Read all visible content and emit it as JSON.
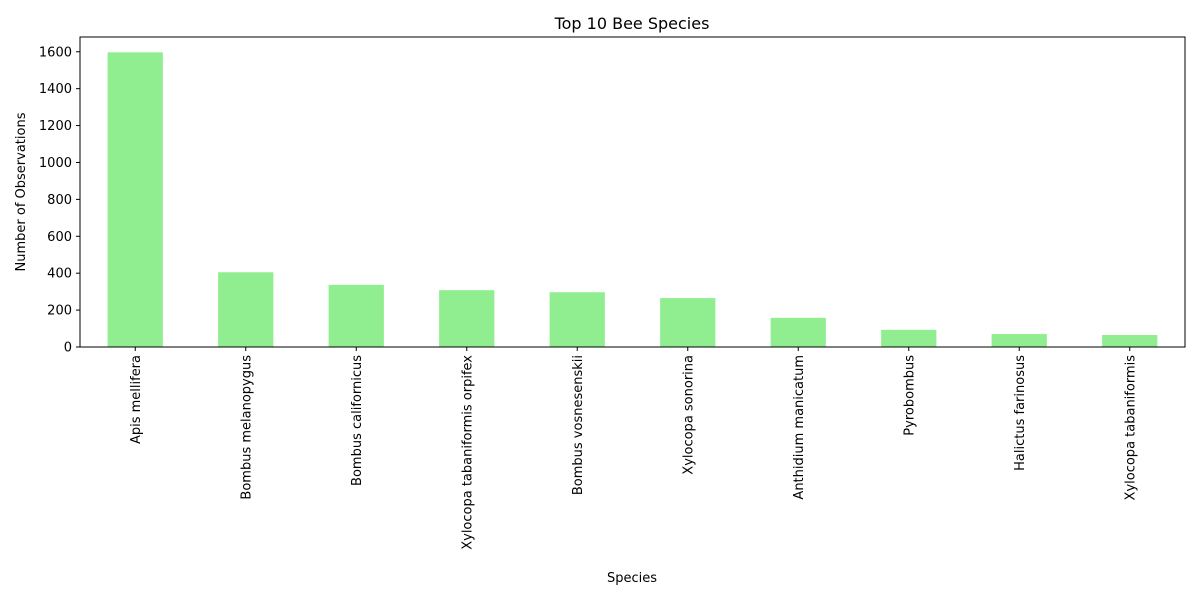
{
  "chart_data": {
    "type": "bar",
    "title": "Top 10 Bee Species",
    "xlabel": "Species",
    "ylabel": "Number of Observations",
    "categories": [
      "Apis mellifera",
      "Bombus melanopygus",
      "Bombus californicus",
      "Xylocopa tabaniformis orpifex",
      "Bombus vosnesenskii",
      "Xylocopa sonorina",
      "Anthidium manicatum",
      "Pyrobombus",
      "Halictus farinosus",
      "Xylocopa tabaniformis"
    ],
    "values": [
      1597,
      405,
      337,
      308,
      297,
      265,
      158,
      93,
      70,
      65
    ],
    "ylim": [
      0,
      1680
    ],
    "yticks": [
      0,
      200,
      400,
      600,
      800,
      1000,
      1200,
      1400,
      1600
    ],
    "bar_color": "#90ee90",
    "grid": false,
    "legend": "none"
  }
}
